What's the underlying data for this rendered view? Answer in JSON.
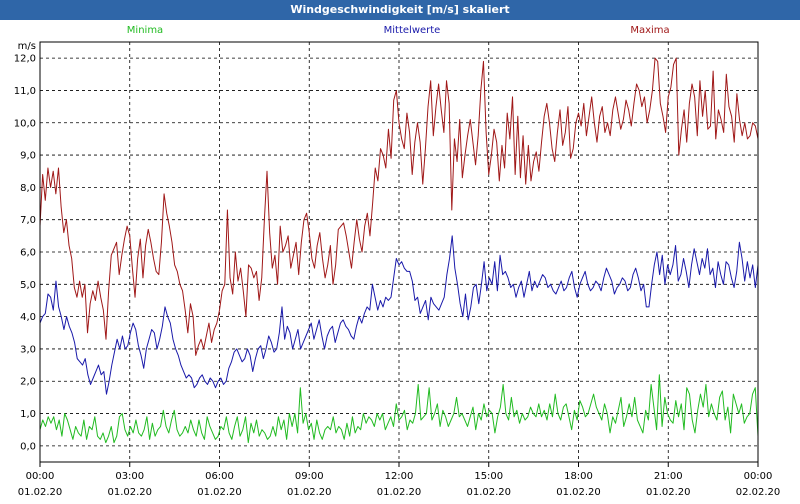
{
  "window": {
    "title": "Windgeschwindigkeit [m/s] skaliert"
  },
  "chart_data": {
    "type": "line",
    "title": "Windgeschwindigkeit [m/s] skaliert",
    "ylabel": "m/s",
    "xlabel": "",
    "ylim": [
      -0.5,
      12.5
    ],
    "xlim_hours": [
      0,
      24
    ],
    "grid": true,
    "legend": "top",
    "y_ticks": [
      "0,0",
      "1,0",
      "2,0",
      "3,0",
      "4,0",
      "5,0",
      "6,0",
      "7,0",
      "8,0",
      "9,0",
      "10,0",
      "11,0",
      "12,0"
    ],
    "x_ticks": [
      {
        "time": "00:00",
        "date": "01.02.20"
      },
      {
        "time": "03:00",
        "date": "01.02.20"
      },
      {
        "time": "06:00",
        "date": "01.02.20"
      },
      {
        "time": "09:00",
        "date": "01.02.20"
      },
      {
        "time": "12:00",
        "date": "01.02.20"
      },
      {
        "time": "15:00",
        "date": "01.02.20"
      },
      {
        "time": "18:00",
        "date": "01.02.20"
      },
      {
        "time": "21:00",
        "date": "01.02.20"
      },
      {
        "time": "00:00",
        "date": "02.02.20"
      }
    ],
    "series": [
      {
        "name": "Minima",
        "color": "#22bb22",
        "values": [
          0.5,
          0.8,
          0.6,
          0.9,
          0.7,
          0.9,
          0.5,
          0.8,
          0.3,
          1.0,
          0.8,
          0.5,
          0.2,
          0.6,
          0.4,
          0.3,
          0.8,
          0.2,
          0.6,
          0.5,
          0.9,
          0.3,
          0.2,
          0.4,
          0.1,
          0.3,
          0.6,
          0.1,
          0.3,
          0.9,
          1.0,
          0.5,
          0.3,
          0.6,
          0.4,
          0.8,
          0.4,
          0.3,
          0.5,
          0.9,
          0.2,
          0.7,
          0.3,
          0.5,
          0.6,
          1.1,
          0.6,
          0.4,
          0.8,
          1.1,
          0.5,
          0.3,
          0.4,
          0.6,
          0.4,
          0.8,
          0.5,
          0.3,
          0.8,
          0.4,
          0.2,
          0.9,
          0.6,
          0.4,
          0.2,
          0.3,
          0.6,
          0.5,
          0.9,
          0.4,
          0.2,
          0.6,
          0.9,
          0.3,
          0.5,
          0.9,
          0.1,
          0.7,
          0.4,
          0.8,
          0.3,
          0.5,
          0.4,
          0.2,
          0.3,
          0.6,
          0.3,
          0.9,
          0.5,
          0.8,
          0.2,
          1.0,
          0.6,
          1.0,
          0.4,
          1.8,
          0.7,
          1.0,
          0.5,
          0.7,
          0.2,
          0.8,
          0.4,
          0.2,
          0.5,
          0.6,
          0.5,
          0.9,
          0.4,
          0.6,
          0.5,
          0.2,
          0.7,
          0.3,
          0.9,
          0.4,
          0.6,
          0.5,
          1.0,
          0.7,
          0.9,
          0.8,
          0.6,
          1.0,
          0.8,
          1.0,
          0.5,
          0.7,
          0.9,
          0.6,
          1.3,
          0.8,
          0.9,
          1.1,
          0.5,
          0.8,
          0.7,
          1.0,
          1.9,
          0.8,
          0.9,
          1.0,
          1.8,
          0.8,
          1.0,
          1.3,
          0.6,
          1.1,
          0.9,
          0.6,
          0.8,
          1.0,
          1.5,
          0.9,
          1.0,
          0.8,
          0.6,
          0.9,
          1.2,
          0.5,
          1.0,
          0.8,
          1.3,
          0.9,
          1.1,
          1.0,
          0.4,
          0.9,
          1.2,
          1.9,
          1.0,
          0.8,
          1.5,
          0.9,
          1.1,
          0.7,
          1.0,
          0.8,
          0.9,
          1.2,
          1.0,
          0.9,
          1.3,
          0.9,
          1.1,
          0.8,
          1.3,
          0.9,
          1.6,
          1.0,
          0.8,
          1.2,
          1.3,
          0.9,
          0.5,
          1.1,
          0.8,
          1.4,
          1.2,
          0.9,
          1.0,
          1.3,
          1.6,
          1.2,
          1.0,
          0.8,
          1.3,
          1.0,
          0.4,
          0.9,
          0.7,
          1.1,
          1.5,
          0.6,
          0.9,
          1.3,
          0.9,
          1.5,
          0.8,
          0.6,
          0.4,
          1.1,
          0.8,
          1.9,
          1.2,
          0.5,
          2.2,
          0.6,
          1.5,
          1.0,
          0.8,
          0.7,
          1.4,
          0.9,
          1.3,
          0.5,
          1.8,
          1.6,
          0.8,
          0.4,
          1.1,
          1.6,
          1.2,
          1.9,
          0.9,
          1.3,
          1.0,
          0.8,
          1.5,
          1.7,
          0.8,
          1.2,
          0.4,
          1.6,
          1.3,
          1.0,
          1.3,
          0.7,
          0.9,
          1.0,
          1.6,
          1.8,
          0.3
        ]
      },
      {
        "name": "Mittelwerte",
        "color": "#1a1aaa",
        "values": [
          3.8,
          4.0,
          4.1,
          4.7,
          4.6,
          4.2,
          5.1,
          4.3,
          4.0,
          3.6,
          4.0,
          3.7,
          3.5,
          3.2,
          2.7,
          2.6,
          2.5,
          2.7,
          2.2,
          1.9,
          2.1,
          2.3,
          2.5,
          2.2,
          2.3,
          1.6,
          2.0,
          2.5,
          2.9,
          3.3,
          3.0,
          3.4,
          3.0,
          3.1,
          3.5,
          3.8,
          3.6,
          3.1,
          2.8,
          2.4,
          3.0,
          3.3,
          3.6,
          3.5,
          3.0,
          3.3,
          3.7,
          4.3,
          4.0,
          3.8,
          3.3,
          3.0,
          2.8,
          2.5,
          2.3,
          2.1,
          2.2,
          2.1,
          1.8,
          1.9,
          2.1,
          2.2,
          2.0,
          1.9,
          2.1,
          2.0,
          1.8,
          2.0,
          2.1,
          1.9,
          2.0,
          2.4,
          2.6,
          2.9,
          3.0,
          2.8,
          2.6,
          2.7,
          3.0,
          2.8,
          2.3,
          2.7,
          3.0,
          3.1,
          2.7,
          3.0,
          3.4,
          3.2,
          2.9,
          3.0,
          3.5,
          4.3,
          3.3,
          3.7,
          3.5,
          3.0,
          3.3,
          3.6,
          3.0,
          3.2,
          3.4,
          3.6,
          3.8,
          3.3,
          3.6,
          3.9,
          3.4,
          3.0,
          3.4,
          3.6,
          3.7,
          3.2,
          3.5,
          3.8,
          3.9,
          3.7,
          3.6,
          3.4,
          3.3,
          3.7,
          4.0,
          3.8,
          4.1,
          4.3,
          4.2,
          5.0,
          4.6,
          4.2,
          4.5,
          4.3,
          4.6,
          4.5,
          4.6,
          5.2,
          5.8,
          5.6,
          5.7,
          5.5,
          5.4,
          5.4,
          5.1,
          4.5,
          4.6,
          4.1,
          4.3,
          4.5,
          3.9,
          4.6,
          4.4,
          4.3,
          4.2,
          4.4,
          4.6,
          5.3,
          5.8,
          6.5,
          5.5,
          5.0,
          4.4,
          4.0,
          4.7,
          3.9,
          4.3,
          4.9,
          5.0,
          4.4,
          5.0,
          5.7,
          4.8,
          5.2,
          5.0,
          5.7,
          4.8,
          5.9,
          5.3,
          5.4,
          5.2,
          4.9,
          5.0,
          4.6,
          4.9,
          5.1,
          4.6,
          5.0,
          5.4,
          4.8,
          5.1,
          4.9,
          5.1,
          5.3,
          5.2,
          4.9,
          5.0,
          4.8,
          4.7,
          4.9,
          5.1,
          4.8,
          4.9,
          5.2,
          5.4,
          4.9,
          4.6,
          5.0,
          5.2,
          5.4,
          5.0,
          4.8,
          4.9,
          5.1,
          5.0,
          4.8,
          5.2,
          5.5,
          5.3,
          5.1,
          4.7,
          4.9,
          5.0,
          5.2,
          5.1,
          4.8,
          4.9,
          5.3,
          5.5,
          5.2,
          4.8,
          5.0,
          4.3,
          4.3,
          5.0,
          5.6,
          6.0,
          5.3,
          5.9,
          5.0,
          5.6,
          5.3,
          5.6,
          6.2,
          5.1,
          5.3,
          5.8,
          5.4,
          4.9,
          5.6,
          6.1,
          5.7,
          5.3,
          5.8,
          5.5,
          6.1,
          5.3,
          5.5,
          4.9,
          5.7,
          5.3,
          5.0,
          5.7,
          5.6,
          5.2,
          4.9,
          5.4,
          6.3,
          5.8,
          5.1,
          5.7,
          5.2,
          5.6,
          4.9,
          5.6
        ]
      },
      {
        "name": "Maxima",
        "color": "#a01818",
        "values": [
          6.8,
          8.4,
          7.6,
          8.6,
          8.0,
          8.5,
          7.8,
          8.6,
          7.4,
          6.6,
          7.0,
          6.2,
          5.8,
          4.9,
          4.6,
          5.1,
          4.6,
          5.0,
          3.5,
          4.4,
          4.8,
          4.5,
          5.1,
          4.6,
          4.2,
          3.3,
          4.8,
          5.9,
          6.1,
          6.3,
          5.3,
          5.9,
          6.4,
          6.8,
          6.5,
          5.5,
          4.6,
          5.8,
          6.4,
          5.2,
          6.2,
          6.7,
          6.3,
          5.8,
          5.4,
          5.3,
          6.3,
          7.8,
          7.2,
          6.8,
          6.3,
          5.6,
          5.4,
          5.0,
          4.8,
          4.2,
          3.5,
          4.4,
          4.0,
          2.8,
          3.1,
          3.3,
          3.0,
          3.4,
          3.8,
          3.2,
          3.6,
          3.8,
          4.2,
          4.8,
          5.0,
          7.3,
          5.2,
          4.7,
          6.0,
          5.1,
          5.5,
          4.8,
          4.0,
          5.6,
          5.5,
          5.2,
          5.4,
          4.5,
          5.2,
          7.0,
          8.5,
          6.6,
          5.5,
          5.9,
          5.0,
          6.8,
          6.0,
          6.2,
          6.5,
          5.5,
          5.9,
          6.3,
          5.3,
          6.3,
          7.0,
          7.2,
          6.6,
          5.8,
          5.5,
          6.2,
          6.6,
          5.8,
          5.2,
          5.6,
          6.2,
          5.0,
          5.6,
          6.7,
          6.8,
          6.9,
          6.5,
          6.0,
          5.5,
          6.3,
          7.0,
          6.4,
          6.0,
          6.8,
          7.2,
          6.5,
          7.5,
          8.6,
          8.2,
          9.2,
          9.0,
          8.6,
          9.8,
          8.9,
          10.7,
          11.0,
          10.0,
          9.5,
          9.2,
          10.3,
          9.7,
          8.4,
          9.4,
          10.0,
          9.4,
          8.1,
          9.2,
          10.5,
          11.3,
          9.6,
          10.5,
          11.2,
          10.4,
          9.7,
          11.3,
          10.6,
          7.3,
          9.5,
          8.8,
          10.1,
          8.3,
          9.0,
          9.6,
          10.1,
          9.4,
          8.7,
          9.6,
          11.0,
          11.9,
          9.7,
          8.4,
          9.0,
          9.8,
          9.4,
          8.2,
          9.3,
          8.6,
          10.3,
          9.5,
          10.8,
          8.4,
          10.2,
          8.3,
          9.6,
          8.1,
          9.3,
          8.2,
          8.8,
          9.1,
          8.5,
          9.4,
          10.2,
          10.6,
          10.0,
          9.2,
          8.8,
          9.7,
          10.4,
          9.3,
          9.7,
          10.5,
          8.9,
          9.2,
          10.0,
          10.3,
          9.9,
          10.6,
          9.6,
          10.2,
          10.8,
          10.0,
          9.4,
          10.2,
          10.5,
          9.7,
          10.0,
          9.6,
          10.4,
          10.8,
          10.3,
          9.8,
          10.1,
          10.7,
          10.4,
          9.9,
          10.6,
          11.2,
          11.0,
          10.5,
          10.8,
          10.0,
          10.4,
          11.0,
          12.0,
          11.9,
          10.6,
          10.2,
          9.7,
          10.8,
          11.1,
          11.8,
          12.0,
          9.0,
          9.8,
          10.4,
          9.4,
          10.6,
          11.2,
          10.8,
          9.6,
          11.3,
          10.2,
          11.0,
          9.8,
          9.9,
          11.6,
          9.5,
          10.4,
          10.1,
          9.7,
          11.5,
          10.5,
          10.2,
          9.4,
          10.9,
          10.1,
          9.6,
          10.0,
          9.5,
          9.6,
          10.0,
          9.9,
          9.5
        ]
      }
    ]
  }
}
